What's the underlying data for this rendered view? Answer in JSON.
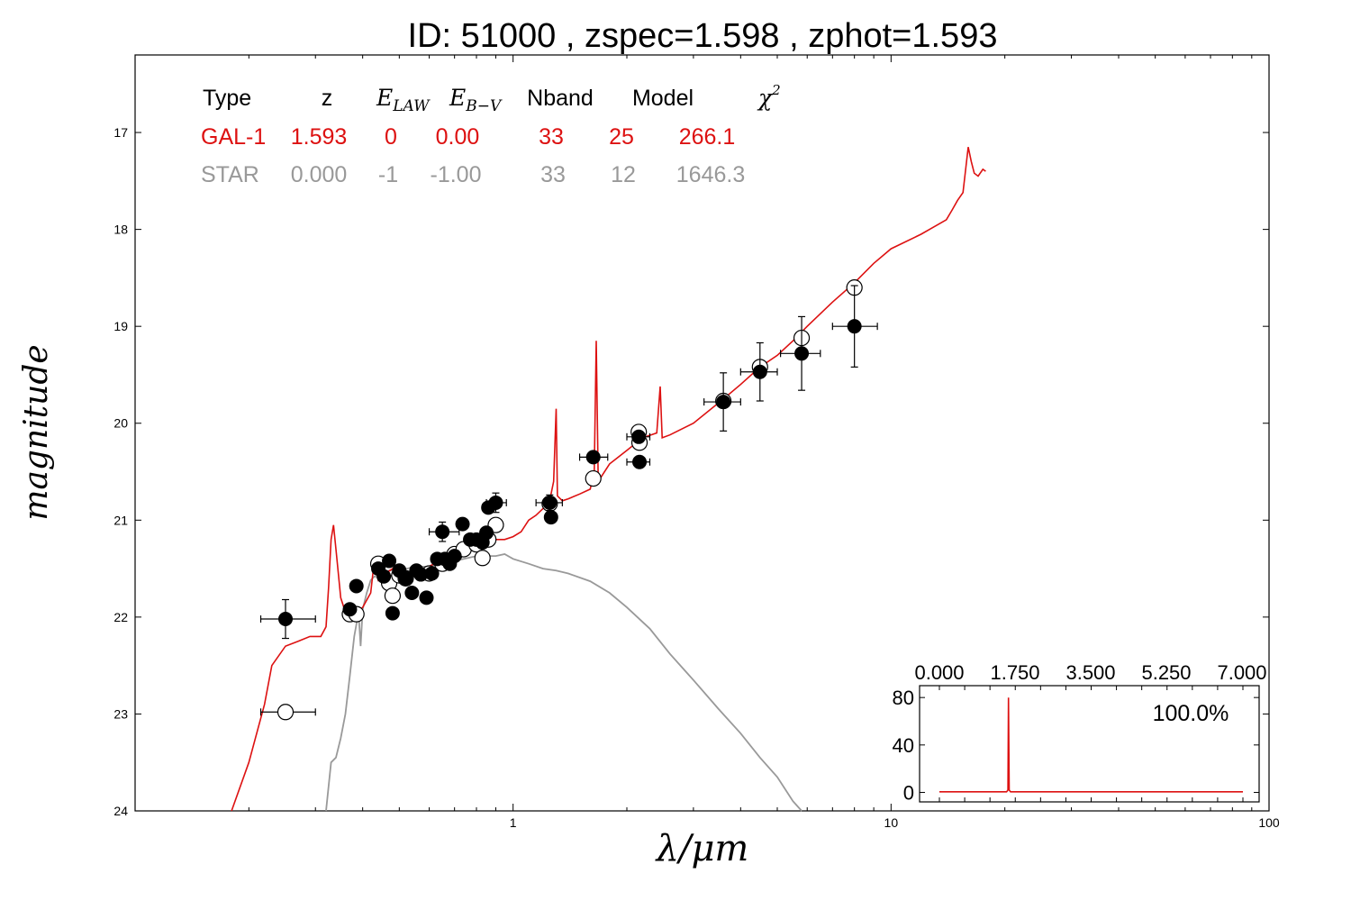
{
  "title": "ID:  51000 , zspec=1.598 , zphot=1.593",
  "colors": {
    "gal": "#dd1111",
    "star": "#999999",
    "ink": "#000000"
  },
  "chart_data": {
    "type": "scatter",
    "xlabel": "λ/μm",
    "ylabel": "magnitude",
    "xscale": "log",
    "xlim": [
      0.1,
      100
    ],
    "ylim": [
      24,
      16.2
    ],
    "x_ticks": [
      {
        "v": 1,
        "label": "1"
      },
      {
        "v": 10,
        "label": "10"
      },
      {
        "v": 100,
        "label": "100"
      }
    ],
    "y_ticks": [
      {
        "v": 17,
        "label": "17"
      },
      {
        "v": 18,
        "label": "18"
      },
      {
        "v": 19,
        "label": "19"
      },
      {
        "v": 20,
        "label": "20"
      },
      {
        "v": 21,
        "label": "21"
      },
      {
        "v": 22,
        "label": "22"
      },
      {
        "v": 23,
        "label": "23"
      },
      {
        "v": 24,
        "label": "24"
      }
    ],
    "fit_table": {
      "headers": [
        "Type",
        "z",
        "E_LAW",
        "E_B-V",
        "Nband",
        "Model",
        "χ²"
      ],
      "rows": [
        {
          "type": "GAL-1",
          "z": "1.593",
          "elaw": "0",
          "ebv": "0.00",
          "nband": "33",
          "model": "25",
          "chi2": "266.1"
        },
        {
          "type": "STAR",
          "z": "0.000",
          "elaw": "-1",
          "ebv": "-1.00",
          "nband": "33",
          "model": "12",
          "chi2": "1646.3"
        }
      ]
    },
    "observed_mags": [
      {
        "x": 0.25,
        "y": 22.02,
        "xerr": [
          0.215,
          0.3
        ],
        "yerr": 0.2
      },
      {
        "x": 0.37,
        "y": 21.92
      },
      {
        "x": 0.385,
        "y": 21.68
      },
      {
        "x": 0.44,
        "y": 21.5
      },
      {
        "x": 0.455,
        "y": 21.58
      },
      {
        "x": 0.47,
        "y": 21.42
      },
      {
        "x": 0.48,
        "y": 21.96
      },
      {
        "x": 0.5,
        "y": 21.52
      },
      {
        "x": 0.52,
        "y": 21.6
      },
      {
        "x": 0.54,
        "y": 21.75
      },
      {
        "x": 0.555,
        "y": 21.52
      },
      {
        "x": 0.57,
        "y": 21.56
      },
      {
        "x": 0.59,
        "y": 21.8
      },
      {
        "x": 0.61,
        "y": 21.55
      },
      {
        "x": 0.63,
        "y": 21.4
      },
      {
        "x": 0.65,
        "y": 21.12,
        "xerr": [
          0.6,
          0.72
        ],
        "yerr": 0.1
      },
      {
        "x": 0.66,
        "y": 21.4
      },
      {
        "x": 0.68,
        "y": 21.45
      },
      {
        "x": 0.7,
        "y": 21.37
      },
      {
        "x": 0.735,
        "y": 21.04
      },
      {
        "x": 0.77,
        "y": 21.2
      },
      {
        "x": 0.8,
        "y": 21.2
      },
      {
        "x": 0.83,
        "y": 21.23
      },
      {
        "x": 0.85,
        "y": 21.13
      },
      {
        "x": 0.86,
        "y": 20.87
      },
      {
        "x": 0.9,
        "y": 20.82,
        "xerr": [
          0.85,
          0.96
        ],
        "yerr": 0.1
      },
      {
        "x": 1.25,
        "y": 20.82,
        "xerr": [
          1.15,
          1.35
        ],
        "yerr": 0.08
      },
      {
        "x": 1.26,
        "y": 20.97
      },
      {
        "x": 1.63,
        "y": 20.35,
        "xerr": [
          1.5,
          1.78
        ],
        "yerr": 0.06
      },
      {
        "x": 2.15,
        "y": 20.14,
        "xerr": [
          2.0,
          2.3
        ],
        "yerr": 0.05
      },
      {
        "x": 2.16,
        "y": 20.4,
        "xerr": [
          2.0,
          2.3
        ],
        "yerr": 0.06
      },
      {
        "x": 3.6,
        "y": 19.78,
        "xerr": [
          3.2,
          4.0
        ],
        "yerr": 0.3
      },
      {
        "x": 4.5,
        "y": 19.47,
        "xerr": [
          4.0,
          5.0
        ],
        "yerr": 0.3
      },
      {
        "x": 5.8,
        "y": 19.28,
        "xerr": [
          5.1,
          6.5
        ],
        "yerr": 0.38
      },
      {
        "x": 8.0,
        "y": 19.0,
        "xerr": [
          7.0,
          9.2
        ],
        "yerr": 0.42
      }
    ],
    "model_mags": [
      {
        "x": 0.25,
        "y": 22.98,
        "xerr": [
          0.215,
          0.3
        ]
      },
      {
        "x": 0.37,
        "y": 21.97
      },
      {
        "x": 0.385,
        "y": 21.97
      },
      {
        "x": 0.44,
        "y": 21.45
      },
      {
        "x": 0.47,
        "y": 21.65
      },
      {
        "x": 0.48,
        "y": 21.78
      },
      {
        "x": 0.5,
        "y": 21.57
      },
      {
        "x": 0.52,
        "y": 21.6
      },
      {
        "x": 0.6,
        "y": 21.55
      },
      {
        "x": 0.65,
        "y": 21.45
      },
      {
        "x": 0.7,
        "y": 21.35
      },
      {
        "x": 0.74,
        "y": 21.3
      },
      {
        "x": 0.8,
        "y": 21.25
      },
      {
        "x": 0.83,
        "y": 21.39
      },
      {
        "x": 0.86,
        "y": 21.2
      },
      {
        "x": 0.9,
        "y": 21.05
      },
      {
        "x": 1.25,
        "y": 20.83
      },
      {
        "x": 1.63,
        "y": 20.57
      },
      {
        "x": 2.15,
        "y": 20.09
      },
      {
        "x": 2.16,
        "y": 20.2
      },
      {
        "x": 3.6,
        "y": 19.77
      },
      {
        "x": 4.5,
        "y": 19.42
      },
      {
        "x": 5.8,
        "y": 19.12
      },
      {
        "x": 8.0,
        "y": 18.6
      }
    ],
    "gal_model_curve": [
      [
        0.18,
        24.0
      ],
      [
        0.2,
        23.5
      ],
      [
        0.22,
        22.9
      ],
      [
        0.23,
        22.5
      ],
      [
        0.25,
        22.3
      ],
      [
        0.27,
        22.25
      ],
      [
        0.29,
        22.2
      ],
      [
        0.31,
        22.2
      ],
      [
        0.32,
        22.1
      ],
      [
        0.325,
        21.7
      ],
      [
        0.33,
        21.2
      ],
      [
        0.335,
        21.05
      ],
      [
        0.34,
        21.3
      ],
      [
        0.35,
        21.8
      ],
      [
        0.36,
        21.95
      ],
      [
        0.38,
        21.97
      ],
      [
        0.4,
        21.9
      ],
      [
        0.42,
        21.75
      ],
      [
        0.43,
        21.4
      ],
      [
        0.44,
        21.62
      ],
      [
        0.46,
        21.55
      ],
      [
        0.48,
        21.5
      ],
      [
        0.5,
        21.58
      ],
      [
        0.52,
        21.55
      ],
      [
        0.55,
        21.52
      ],
      [
        0.58,
        21.5
      ],
      [
        0.62,
        21.45
      ],
      [
        0.66,
        21.38
      ],
      [
        0.7,
        21.33
      ],
      [
        0.75,
        21.25
      ],
      [
        0.8,
        21.2
      ],
      [
        0.85,
        21.18
      ],
      [
        0.9,
        21.2
      ],
      [
        0.95,
        21.2
      ],
      [
        1.0,
        21.17
      ],
      [
        1.05,
        21.12
      ],
      [
        1.1,
        21.0
      ],
      [
        1.15,
        20.95
      ],
      [
        1.2,
        20.88
      ],
      [
        1.25,
        20.8
      ],
      [
        1.28,
        20.6
      ],
      [
        1.3,
        19.85
      ],
      [
        1.31,
        20.75
      ],
      [
        1.35,
        20.8
      ],
      [
        1.4,
        20.78
      ],
      [
        1.5,
        20.73
      ],
      [
        1.6,
        20.68
      ],
      [
        1.64,
        20.5
      ],
      [
        1.66,
        19.15
      ],
      [
        1.68,
        20.6
      ],
      [
        1.8,
        20.42
      ],
      [
        2.0,
        20.28
      ],
      [
        2.2,
        20.15
      ],
      [
        2.4,
        20.1
      ],
      [
        2.45,
        19.62
      ],
      [
        2.48,
        20.15
      ],
      [
        2.6,
        20.12
      ],
      [
        3.0,
        20.0
      ],
      [
        3.6,
        19.75
      ],
      [
        4.0,
        19.6
      ],
      [
        4.5,
        19.42
      ],
      [
        5.0,
        19.3
      ],
      [
        5.5,
        19.15
      ],
      [
        6.0,
        19.0
      ],
      [
        7.0,
        18.75
      ],
      [
        8.0,
        18.55
      ],
      [
        9.0,
        18.35
      ],
      [
        10.0,
        18.2
      ],
      [
        12.0,
        18.05
      ],
      [
        14.0,
        17.9
      ],
      [
        14.5,
        17.8
      ],
      [
        15.0,
        17.7
      ],
      [
        15.5,
        17.62
      ],
      [
        16.0,
        17.15
      ],
      [
        16.3,
        17.3
      ],
      [
        16.6,
        17.42
      ],
      [
        17.0,
        17.45
      ],
      [
        17.5,
        17.38
      ],
      [
        17.8,
        17.4
      ]
    ],
    "star_model_curve": [
      [
        0.32,
        24.0
      ],
      [
        0.33,
        23.5
      ],
      [
        0.34,
        23.45
      ],
      [
        0.35,
        23.25
      ],
      [
        0.36,
        23.0
      ],
      [
        0.37,
        22.6
      ],
      [
        0.38,
        22.2
      ],
      [
        0.39,
        21.95
      ],
      [
        0.395,
        22.3
      ],
      [
        0.4,
        21.92
      ],
      [
        0.41,
        21.75
      ],
      [
        0.42,
        21.62
      ],
      [
        0.43,
        21.58
      ],
      [
        0.45,
        21.6
      ],
      [
        0.47,
        21.52
      ],
      [
        0.5,
        21.52
      ],
      [
        0.55,
        21.48
      ],
      [
        0.6,
        21.48
      ],
      [
        0.7,
        21.42
      ],
      [
        0.8,
        21.37
      ],
      [
        0.9,
        21.37
      ],
      [
        0.95,
        21.35
      ],
      [
        1.0,
        21.4
      ],
      [
        1.1,
        21.45
      ],
      [
        1.2,
        21.5
      ],
      [
        1.3,
        21.52
      ],
      [
        1.4,
        21.55
      ],
      [
        1.6,
        21.63
      ],
      [
        1.8,
        21.75
      ],
      [
        2.0,
        21.9
      ],
      [
        2.3,
        22.12
      ],
      [
        2.6,
        22.38
      ],
      [
        3.0,
        22.65
      ],
      [
        3.5,
        22.95
      ],
      [
        4.0,
        23.2
      ],
      [
        4.5,
        23.45
      ],
      [
        5.0,
        23.65
      ],
      [
        5.5,
        23.9
      ],
      [
        5.8,
        24.0
      ]
    ],
    "pdz_inset": {
      "xlim": [
        0,
        7
      ],
      "ylim": [
        -8,
        90
      ],
      "x_ticks": [
        {
          "v": 0,
          "label": "0.000"
        },
        {
          "v": 1.75,
          "label": "1.750"
        },
        {
          "v": 3.5,
          "label": "3.500"
        },
        {
          "v": 5.25,
          "label": "5.250"
        },
        {
          "v": 7,
          "label": "7.000"
        }
      ],
      "y_ticks": [
        {
          "v": 0,
          "label": "0"
        },
        {
          "v": 40,
          "label": "40"
        },
        {
          "v": 80,
          "label": "80"
        }
      ],
      "annotation": "100.0%",
      "curve": [
        [
          0.0,
          0.5
        ],
        [
          1.55,
          0.5
        ],
        [
          1.58,
          2
        ],
        [
          1.593,
          80
        ],
        [
          1.61,
          2
        ],
        [
          1.64,
          0.5
        ],
        [
          7.0,
          0.5
        ]
      ]
    }
  }
}
